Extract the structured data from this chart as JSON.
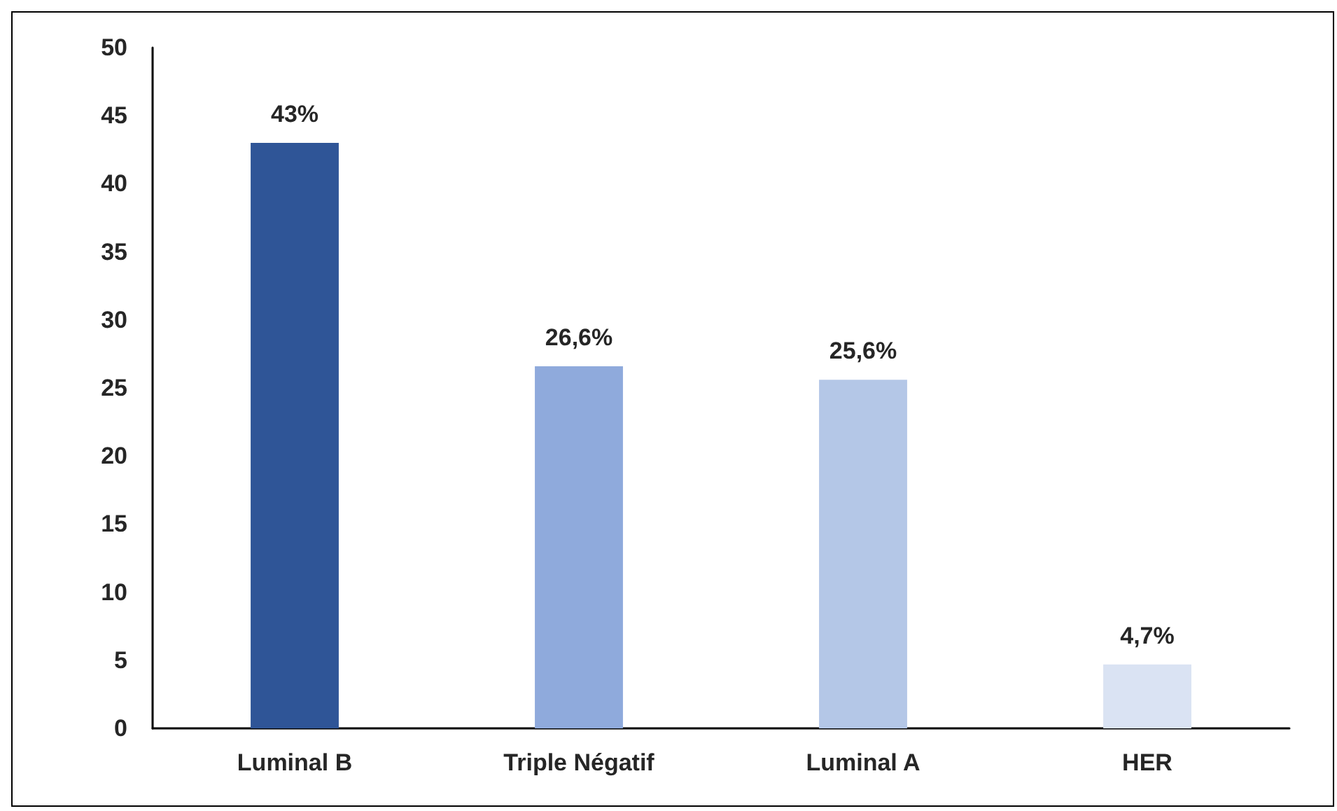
{
  "chart_data": {
    "type": "bar",
    "categories": [
      "Luminal B",
      "Triple Négatif",
      "Luminal A",
      "HER"
    ],
    "values": [
      43,
      26.6,
      25.6,
      4.7
    ],
    "colors": [
      "#2f5597",
      "#8faadc",
      "#b4c7e7",
      "#dae3f3"
    ],
    "value_labels": [
      "43%",
      "26,6%",
      "25,6%",
      "4,7%"
    ],
    "ylim": [
      0,
      50
    ],
    "yticks": [
      0,
      5,
      10,
      15,
      20,
      25,
      30,
      35,
      40,
      45,
      50
    ],
    "grid": false
  }
}
